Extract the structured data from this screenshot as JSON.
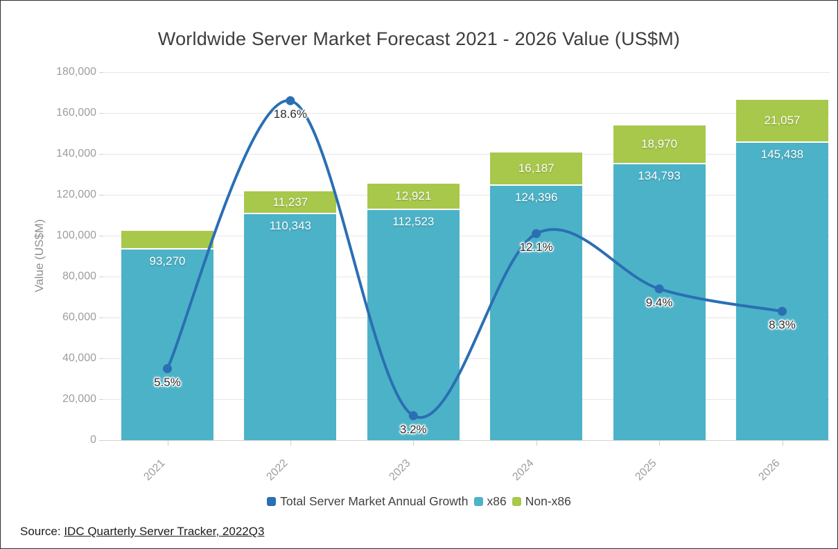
{
  "frame": {
    "title": "Worldwide Server Market Forecast 2021 - 2026 Value (US$M)",
    "source_prefix": "Source: ",
    "source_link": "IDC Quarterly Server Tracker, 2022Q3"
  },
  "legend": [
    {
      "label": "Total Server Market Annual Growth",
      "color": "#2a6fb3"
    },
    {
      "label": "x86",
      "color": "#4cb2c8"
    },
    {
      "label": "Non-x86",
      "color": "#a8c84c"
    }
  ],
  "chart_data": {
    "type": "bar",
    "subtype": "stacked-bars-with-growth-line",
    "title": "Worldwide Server Market Forecast 2021 - 2026 Value (US$M)",
    "ylabel": "Value (US$M)",
    "categories": [
      "2021",
      "2022",
      "2023",
      "2024",
      "2025",
      "2026"
    ],
    "series": [
      {
        "name": "x86",
        "type": "bar",
        "color": "#4cb2c8",
        "values": [
          93270,
          110343,
          112523,
          124396,
          134793,
          145438
        ],
        "labels": [
          "93,270",
          "110,343",
          "112,523",
          "124,396",
          "134,793",
          "145,438"
        ]
      },
      {
        "name": "Non-x86",
        "type": "bar",
        "color": "#a8c84c",
        "values": [
          9250,
          11237,
          12921,
          16187,
          18970,
          21057
        ],
        "labels": [
          null,
          "11,237",
          "12,921",
          "16,187",
          "18,970",
          "21,057"
        ]
      },
      {
        "name": "Total Server Market Annual Growth",
        "type": "line",
        "axis": "secondary",
        "color": "#2a6fb3",
        "values": [
          5.5,
          18.6,
          3.2,
          12.1,
          9.4,
          8.3
        ],
        "labels": [
          "5.5%",
          "18.6%",
          "3.2%",
          "12.1%",
          "9.4%",
          "8.3%"
        ]
      }
    ],
    "ylim": [
      0,
      180000
    ],
    "yticks": [
      0,
      20000,
      40000,
      60000,
      80000,
      100000,
      120000,
      140000,
      160000,
      180000
    ],
    "ytick_labels": [
      "0",
      "20,000",
      "40,000",
      "60,000",
      "80,000",
      "100,000",
      "120,000",
      "140,000",
      "160,000",
      "180,000"
    ],
    "y2lim": [
      2,
      20
    ],
    "grid": true,
    "legend_position": "bottom"
  }
}
